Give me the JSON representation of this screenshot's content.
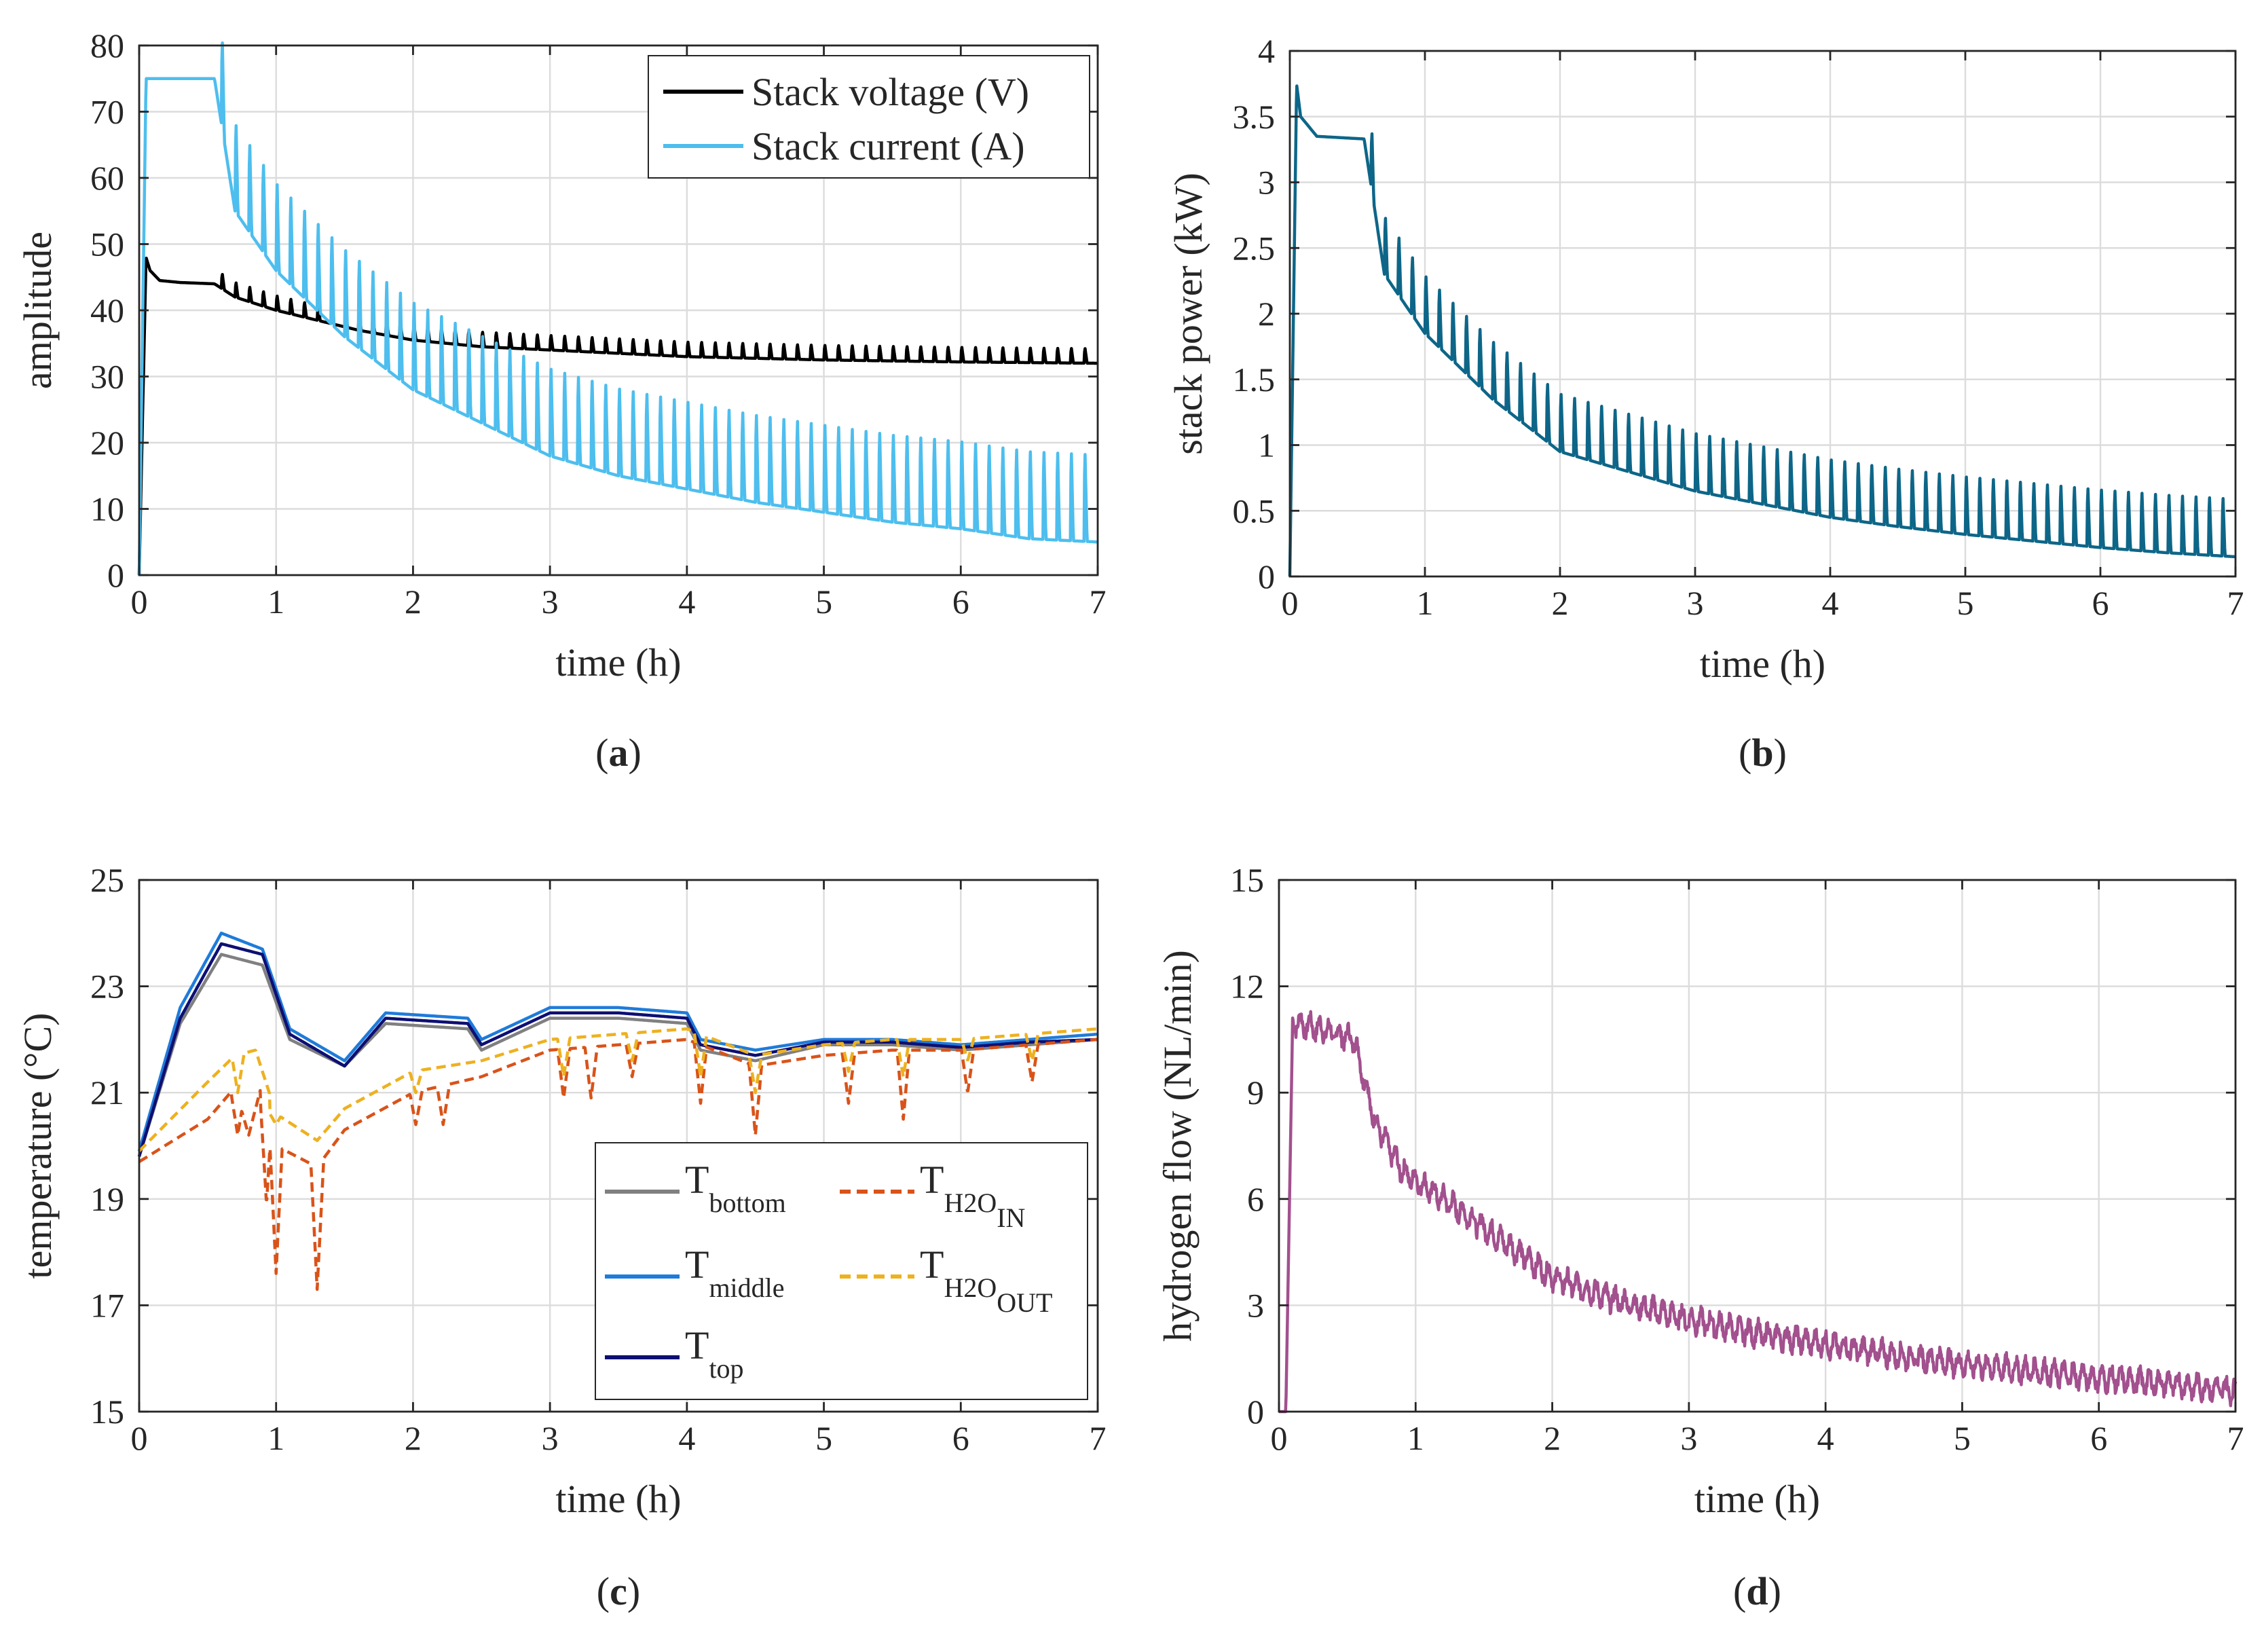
{
  "chart_data": [
    {
      "type": "line",
      "panel": "a",
      "caption_letter": "a",
      "xlabel": "time (h)",
      "ylabel": "amplitude",
      "xlim": [
        0,
        7
      ],
      "ylim": [
        0,
        80
      ],
      "xticks": [
        "0",
        "1",
        "2",
        "3",
        "4",
        "5",
        "6",
        "7"
      ],
      "yticks": [
        "0",
        "10",
        "20",
        "30",
        "40",
        "50",
        "60",
        "70",
        "80"
      ],
      "grid": true,
      "legend_position": "top-right",
      "series": [
        {
          "name": "Stack voltage (V)",
          "color": "#000000",
          "style": "solid",
          "x": [
            0,
            0.05,
            0.08,
            0.15,
            0.3,
            0.55,
            0.7,
            1.0,
            1.3,
            1.6,
            2.0,
            2.5,
            3.0,
            3.5,
            4.0,
            5.0,
            6.0,
            7.0
          ],
          "y": [
            0,
            48,
            46,
            44.5,
            44.2,
            44,
            42,
            40,
            38.5,
            37,
            35.5,
            34.5,
            34,
            33.5,
            33,
            32.5,
            32.2,
            32
          ],
          "spike_interval": 0.1,
          "spike_amplitude": 2.5
        },
        {
          "name": "Stack current (A)",
          "color": "#4dbeee",
          "style": "solid",
          "x": [
            0,
            0.05,
            0.55,
            0.7,
            1.0,
            1.5,
            2.0,
            2.5,
            3.0,
            3.5,
            4.0,
            4.5,
            5.0,
            5.5,
            6.0,
            6.5,
            7.0
          ],
          "y": [
            0,
            75,
            75,
            55,
            46,
            36,
            28,
            23,
            18,
            15,
            13,
            11,
            9.5,
            8,
            7,
            5.5,
            5
          ],
          "spike_interval": 0.1,
          "spike_amplitude": 15
        }
      ]
    },
    {
      "type": "line",
      "panel": "b",
      "caption_letter": "b",
      "xlabel": "time (h)",
      "ylabel": "stack power (kW)",
      "xlim": [
        0,
        7
      ],
      "ylim": [
        0,
        4
      ],
      "xticks": [
        "0",
        "1",
        "2",
        "3",
        "4",
        "5",
        "6",
        "7"
      ],
      "yticks": [
        "0",
        "0.5",
        "1",
        "1.5",
        "2",
        "2.5",
        "3",
        "3.5",
        "4"
      ],
      "grid": true,
      "series": [
        {
          "name": "stack power",
          "color": "#0d6688",
          "style": "solid",
          "x": [
            0,
            0.05,
            0.08,
            0.2,
            0.55,
            0.7,
            1.0,
            1.5,
            2.0,
            2.5,
            3.0,
            3.5,
            4.0,
            4.5,
            5.0,
            5.5,
            6.0,
            6.5,
            7.0
          ],
          "y": [
            0,
            3.75,
            3.5,
            3.35,
            3.33,
            2.3,
            1.85,
            1.35,
            0.95,
            0.8,
            0.65,
            0.55,
            0.45,
            0.38,
            0.32,
            0.27,
            0.22,
            0.18,
            0.15
          ],
          "spike_interval": 0.1,
          "spike_amplitude": 0.5
        }
      ]
    },
    {
      "type": "line",
      "panel": "c",
      "caption_letter": "c",
      "xlabel": "time (h)",
      "ylabel": "temperature (°C)",
      "xlim": [
        0,
        7
      ],
      "ylim": [
        15,
        25
      ],
      "xticks": [
        "0",
        "1",
        "2",
        "3",
        "4",
        "5",
        "6",
        "7"
      ],
      "yticks": [
        "15",
        "17",
        "19",
        "21",
        "23",
        "25"
      ],
      "grid": true,
      "legend_position": "bottom-right",
      "series": [
        {
          "name": "T",
          "sub": "bottom",
          "color": "#808080",
          "style": "solid",
          "x": [
            0,
            0.3,
            0.6,
            0.9,
            1.1,
            1.5,
            1.8,
            2.4,
            2.5,
            3.0,
            3.5,
            4.0,
            4.1,
            4.5,
            5.0,
            5.5,
            6.0,
            6.5,
            7.0
          ],
          "y": [
            19.8,
            22.3,
            23.6,
            23.4,
            22.0,
            21.5,
            22.3,
            22.2,
            21.8,
            22.4,
            22.4,
            22.3,
            21.8,
            21.6,
            21.9,
            21.9,
            21.8,
            21.9,
            22.0
          ]
        },
        {
          "name": "T",
          "sub": "middle",
          "color": "#1f7bd9",
          "style": "solid",
          "x": [
            0,
            0.3,
            0.6,
            0.9,
            1.1,
            1.5,
            1.8,
            2.4,
            2.5,
            3.0,
            3.5,
            4.0,
            4.1,
            4.5,
            5.0,
            5.5,
            6.0,
            6.5,
            7.0
          ],
          "y": [
            19.9,
            22.6,
            24.0,
            23.7,
            22.2,
            21.6,
            22.5,
            22.4,
            22.0,
            22.6,
            22.6,
            22.5,
            22.0,
            21.8,
            22.0,
            22.0,
            21.9,
            22.0,
            22.1
          ]
        },
        {
          "name": "T",
          "sub": "top",
          "color": "#0d0f73",
          "style": "solid",
          "x": [
            0,
            0.3,
            0.6,
            0.9,
            1.1,
            1.5,
            1.8,
            2.4,
            2.5,
            3.0,
            3.5,
            4.0,
            4.1,
            4.5,
            5.0,
            5.5,
            6.0,
            6.5,
            7.0
          ],
          "y": [
            19.8,
            22.4,
            23.8,
            23.6,
            22.1,
            21.5,
            22.4,
            22.3,
            21.9,
            22.5,
            22.5,
            22.4,
            21.9,
            21.7,
            21.95,
            21.95,
            21.85,
            21.95,
            22.0
          ]
        },
        {
          "name": "T",
          "sub": "H2O",
          "subsub": "IN",
          "color": "#d95319",
          "style": "dashed",
          "x": [
            0,
            0.5,
            0.7,
            0.8,
            0.9,
            1.0,
            1.3,
            1.5,
            2.0,
            2.5,
            3.0,
            3.5,
            4.0,
            4.5,
            5.0,
            5.5,
            6.0,
            6.5,
            7.0
          ],
          "y": [
            19.7,
            20.5,
            21.1,
            20.2,
            21.2,
            20.0,
            19.6,
            20.3,
            21.0,
            21.3,
            21.8,
            21.9,
            22.0,
            21.5,
            21.7,
            21.8,
            21.8,
            21.9,
            22.0
          ],
          "dips": [
            [
              0.72,
              20.2
            ],
            [
              0.93,
              18.9
            ],
            [
              1.0,
              17.6
            ],
            [
              1.3,
              17.3
            ],
            [
              2.02,
              20.4
            ],
            [
              2.22,
              20.4
            ],
            [
              3.1,
              20.9
            ],
            [
              3.3,
              20.9
            ],
            [
              3.6,
              21.3
            ],
            [
              4.1,
              20.8
            ],
            [
              4.5,
              20.2
            ],
            [
              5.18,
              20.8
            ],
            [
              5.58,
              20.5
            ],
            [
              6.05,
              21.0
            ],
            [
              6.52,
              21.2
            ]
          ]
        },
        {
          "name": "T",
          "sub": "H2O",
          "subsub": "OUT",
          "color": "#edb120",
          "style": "dashed",
          "x": [
            0,
            0.5,
            0.7,
            0.85,
            1.0,
            1.3,
            1.5,
            2.0,
            2.5,
            3.0,
            3.5,
            4.0,
            4.5,
            5.0,
            5.5,
            6.0,
            6.5,
            7.0
          ],
          "y": [
            19.9,
            21.2,
            21.7,
            21.8,
            20.6,
            20.1,
            20.7,
            21.4,
            21.6,
            22.0,
            22.1,
            22.2,
            21.7,
            21.9,
            22.0,
            22.0,
            22.1,
            22.2
          ],
          "dips": [
            [
              0.72,
              21.0
            ],
            [
              1.0,
              20.4
            ],
            [
              2.02,
              21.0
            ],
            [
              3.1,
              21.3
            ],
            [
              3.6,
              21.6
            ],
            [
              4.1,
              21.3
            ],
            [
              4.5,
              21.0
            ],
            [
              5.18,
              21.4
            ],
            [
              5.58,
              21.3
            ],
            [
              6.05,
              21.6
            ],
            [
              6.52,
              21.6
            ]
          ]
        }
      ]
    },
    {
      "type": "line",
      "panel": "d",
      "caption_letter": "d",
      "xlabel": "time (h)",
      "ylabel": "hydrogen flow (NL/min)",
      "xlim": [
        0,
        7
      ],
      "ylim": [
        0,
        15
      ],
      "xticks": [
        "0",
        "1",
        "2",
        "3",
        "4",
        "5",
        "6",
        "7"
      ],
      "yticks": [
        "0",
        "3",
        "6",
        "9",
        "12",
        "15"
      ],
      "grid": true,
      "series": [
        {
          "name": "hydrogen flow",
          "color": "#a2508e",
          "style": "solid",
          "x": [
            0,
            0.05,
            0.1,
            0.3,
            0.55,
            0.7,
            0.9,
            1.2,
            1.5,
            2.0,
            2.5,
            3.0,
            3.5,
            4.0,
            4.5,
            5.0,
            5.5,
            6.0,
            6.5,
            7.0
          ],
          "y": [
            0,
            0,
            11.0,
            10.8,
            10.5,
            8.2,
            6.8,
            6.0,
            5.2,
            3.8,
            3.1,
            2.6,
            2.2,
            1.9,
            1.6,
            1.35,
            1.15,
            0.95,
            0.8,
            0.6
          ],
          "noise_amplitude": 0.45
        }
      ]
    }
  ]
}
